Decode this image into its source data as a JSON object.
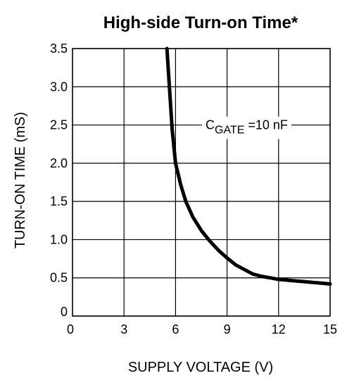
{
  "chart_data": {
    "type": "line",
    "title": "High-side Turn-on Time*",
    "xlabel": "SUPPLY VOLTAGE (V)",
    "ylabel": "TURN-ON TIME (mS)",
    "xlim": [
      0,
      15
    ],
    "ylim": [
      0,
      3.5
    ],
    "x_ticks": [
      "0",
      "3",
      "6",
      "9",
      "12",
      "15"
    ],
    "y_ticks": [
      "0",
      "0.5",
      "1.0",
      "1.5",
      "2.0",
      "2.5",
      "3.0",
      "3.5"
    ],
    "grid": true,
    "annotation": {
      "main": "C",
      "sub": "GATE",
      "rest": " =10 nF",
      "x": 10,
      "y": 2.5
    },
    "series": [
      {
        "values_x": [
          5.5,
          5.6,
          5.7,
          5.8,
          6.0,
          6.3,
          6.6,
          7.0,
          7.5,
          8.0,
          8.5,
          9.0,
          9.5,
          10.0,
          10.5,
          11.0,
          11.5,
          12.0,
          12.5,
          13.0,
          13.5,
          14.0,
          14.5,
          15.0
        ],
        "values_y": [
          3.5,
          3.15,
          2.8,
          2.45,
          2.0,
          1.72,
          1.5,
          1.3,
          1.12,
          0.98,
          0.86,
          0.76,
          0.67,
          0.61,
          0.55,
          0.52,
          0.5,
          0.48,
          0.47,
          0.46,
          0.45,
          0.44,
          0.43,
          0.42
        ]
      }
    ]
  }
}
